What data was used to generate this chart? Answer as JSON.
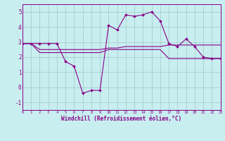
{
  "background_color": "#c8eef0",
  "line_color": "#880088",
  "grid_color": "#a0c8c8",
  "xlim": [
    0,
    23
  ],
  "ylim": [
    -1.5,
    5.5
  ],
  "xticks": [
    0,
    1,
    2,
    3,
    4,
    5,
    6,
    7,
    8,
    9,
    10,
    11,
    12,
    13,
    14,
    15,
    16,
    17,
    18,
    19,
    20,
    21,
    22,
    23
  ],
  "yticks": [
    -1,
    0,
    1,
    2,
    3,
    4,
    5
  ],
  "hours": [
    0,
    1,
    2,
    3,
    4,
    5,
    6,
    7,
    8,
    9,
    10,
    11,
    12,
    13,
    14,
    15,
    16,
    17,
    18,
    19,
    20,
    21,
    22,
    23
  ],
  "windchill": [
    2.9,
    2.9,
    2.9,
    2.9,
    2.9,
    1.7,
    1.4,
    -0.4,
    -0.2,
    -0.2,
    4.1,
    3.8,
    4.8,
    4.7,
    4.8,
    5.0,
    4.4,
    2.9,
    2.7,
    3.2,
    2.7,
    2.0,
    1.9,
    1.9
  ],
  "band_low": [
    2.9,
    2.9,
    2.3,
    2.3,
    2.3,
    2.3,
    2.3,
    2.3,
    2.3,
    2.3,
    2.5,
    2.5,
    2.5,
    2.5,
    2.5,
    2.5,
    2.5,
    1.9,
    1.9,
    1.9,
    1.9,
    1.9,
    1.9,
    1.9
  ],
  "band_high": [
    2.9,
    2.9,
    2.5,
    2.5,
    2.5,
    2.5,
    2.5,
    2.5,
    2.5,
    2.5,
    2.6,
    2.6,
    2.7,
    2.7,
    2.7,
    2.7,
    2.7,
    2.8,
    2.8,
    2.8,
    2.8,
    2.8,
    2.8,
    2.8
  ],
  "xlabel": "Windchill (Refroidissement éolien,°C)",
  "marker_size": 2.0,
  "linewidth": 0.8
}
